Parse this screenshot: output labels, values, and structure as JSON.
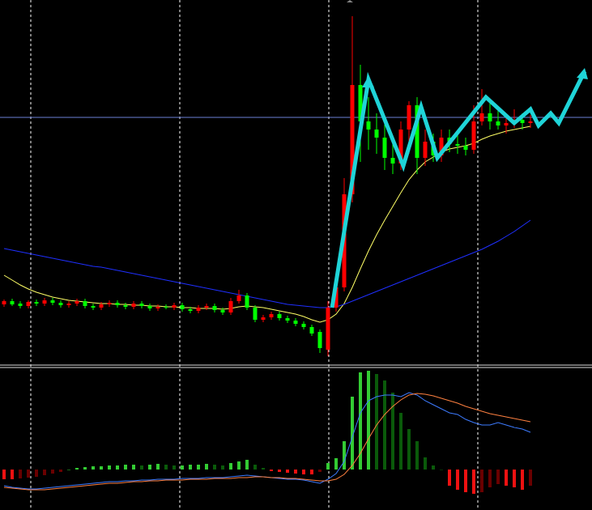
{
  "chart_data": [
    {
      "type": "candlestick",
      "open": [
        74,
        78,
        75,
        72,
        77,
        75,
        79,
        76,
        73,
        75,
        78,
        72,
        70,
        74,
        76,
        73,
        71,
        75,
        72,
        69,
        71,
        70,
        73,
        68,
        66,
        70,
        72,
        67,
        64,
        78,
        85,
        70,
        55,
        58,
        62,
        57,
        54,
        50,
        46,
        40,
        18,
        70,
        95,
        210,
        345,
        300,
        290,
        280,
        255,
        248,
        290,
        320,
        255,
        275,
        258,
        280,
        272,
        270,
        265,
        300,
        310,
        300,
        295,
        298,
        302,
        298
      ],
      "high": [
        80,
        81,
        78,
        79,
        80,
        82,
        82,
        79,
        78,
        81,
        81,
        75,
        77,
        79,
        79,
        76,
        78,
        78,
        75,
        74,
        74,
        76,
        76,
        71,
        73,
        75,
        75,
        70,
        82,
        92,
        88,
        73,
        61,
        65,
        65,
        60,
        57,
        53,
        49,
        43,
        78,
        110,
        230,
        430,
        370,
        330,
        310,
        300,
        275,
        300,
        325,
        330,
        290,
        285,
        290,
        290,
        285,
        280,
        320,
        340,
        325,
        315,
        310,
        315,
        310,
        308
      ],
      "low": [
        71,
        72,
        69,
        69,
        72,
        72,
        73,
        70,
        70,
        72,
        69,
        67,
        67,
        71,
        70,
        68,
        68,
        69,
        66,
        66,
        68,
        67,
        65,
        63,
        63,
        67,
        64,
        61,
        61,
        75,
        67,
        52,
        52,
        55,
        54,
        51,
        47,
        43,
        35,
        14,
        10,
        65,
        90,
        200,
        250,
        265,
        260,
        240,
        235,
        240,
        260,
        235,
        245,
        250,
        250,
        262,
        260,
        258,
        260,
        295,
        290,
        290,
        285,
        292,
        290,
        292
      ],
      "close": [
        78,
        74,
        72,
        77,
        75,
        79,
        76,
        73,
        75,
        78,
        72,
        70,
        74,
        76,
        73,
        71,
        75,
        72,
        69,
        71,
        70,
        73,
        68,
        66,
        70,
        72,
        67,
        64,
        78,
        85,
        70,
        55,
        58,
        62,
        57,
        54,
        50,
        46,
        38,
        20,
        70,
        95,
        210,
        345,
        300,
        290,
        280,
        255,
        248,
        290,
        320,
        255,
        275,
        258,
        280,
        272,
        270,
        265,
        300,
        310,
        300,
        295,
        298,
        302,
        298,
        300
      ],
      "up_color": "#ff0000",
      "down_color": "#00ff00",
      "series": [
        {
          "color": "#ffff66",
          "values": [
            110,
            104,
            98,
            93,
            89,
            86,
            83,
            81,
            79,
            78,
            77,
            76,
            75,
            75,
            74,
            74,
            73,
            73,
            72,
            72,
            71,
            71,
            70,
            70,
            69,
            69,
            69,
            68,
            69,
            71,
            72,
            71,
            70,
            68,
            66,
            64,
            62,
            59,
            55,
            52,
            55,
            62,
            75,
            95,
            118,
            140,
            160,
            178,
            195,
            212,
            228,
            240,
            250,
            256,
            262,
            266,
            268,
            270,
            273,
            278,
            282,
            285,
            288,
            290,
            292,
            294
          ]
        },
        {
          "color": "#1f2fff",
          "values": [
            143,
            141,
            139,
            137,
            135,
            133,
            131,
            129,
            127,
            125,
            123,
            121,
            120,
            118,
            116,
            114,
            112,
            110,
            108,
            106,
            104,
            102,
            100,
            98,
            96,
            94,
            92,
            90,
            88,
            86,
            84,
            82,
            80,
            78,
            76,
            74,
            73,
            72,
            71,
            70,
            70,
            71,
            74,
            78,
            82,
            86,
            90,
            94,
            98,
            102,
            106,
            110,
            114,
            118,
            122,
            126,
            130,
            134,
            138,
            142,
            147,
            152,
            158,
            164,
            171,
            178
          ]
        }
      ],
      "hline": 305,
      "ylim": [
        0,
        450
      ]
    },
    {
      "type": "macd",
      "histogram": [
        -12,
        -12,
        -11,
        -10,
        -9,
        -7,
        -5,
        -3,
        0,
        2,
        3,
        4,
        4,
        5,
        5,
        6,
        6,
        5,
        6,
        7,
        6,
        5,
        5,
        6,
        6,
        7,
        6,
        5,
        8,
        10,
        12,
        6,
        2,
        -2,
        -3,
        -4,
        -5,
        -6,
        -6,
        -3,
        8,
        14,
        35,
        90,
        120,
        122,
        118,
        110,
        95,
        70,
        50,
        35,
        15,
        5,
        0,
        -20,
        -25,
        -28,
        -30,
        -28,
        -22,
        -18,
        -20,
        -22,
        -25,
        -20
      ],
      "series": [
        {
          "color": "#3d7bff",
          "values": [
            -20,
            -22,
            -23,
            -24,
            -24,
            -23,
            -22,
            -21,
            -20,
            -19,
            -18,
            -17,
            -16,
            -15,
            -15,
            -14,
            -14,
            -13,
            -13,
            -12,
            -12,
            -12,
            -11,
            -11,
            -11,
            -10,
            -10,
            -10,
            -9,
            -8,
            -7,
            -8,
            -9,
            -10,
            -11,
            -12,
            -12,
            -13,
            -15,
            -17,
            -12,
            -5,
            10,
            40,
            70,
            85,
            90,
            92,
            92,
            90,
            95,
            92,
            85,
            80,
            75,
            70,
            68,
            62,
            58,
            55,
            55,
            58,
            55,
            52,
            50,
            46
          ]
        },
        {
          "color": "#ff8040",
          "values": [
            -22,
            -23,
            -24,
            -25,
            -25,
            -25,
            -24,
            -23,
            -22,
            -21,
            -20,
            -19,
            -18,
            -17,
            -17,
            -16,
            -15,
            -15,
            -14,
            -14,
            -13,
            -13,
            -13,
            -12,
            -12,
            -12,
            -11,
            -11,
            -11,
            -10,
            -10,
            -9,
            -9,
            -10,
            -10,
            -11,
            -11,
            -12,
            -13,
            -14,
            -14,
            -12,
            -6,
            5,
            20,
            38,
            55,
            68,
            78,
            86,
            92,
            94,
            93,
            91,
            88,
            85,
            82,
            78,
            75,
            72,
            69,
            67,
            65,
            63,
            61,
            59
          ]
        }
      ],
      "ylim": [
        -50,
        125
      ]
    }
  ]
}
